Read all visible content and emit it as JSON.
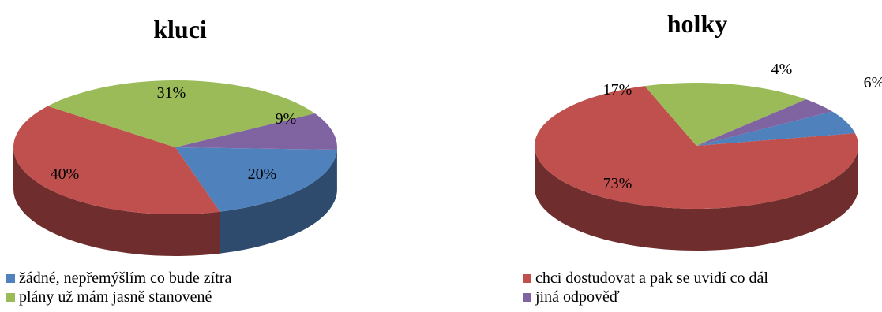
{
  "legend_left": [
    {
      "label": "žádné, nepřemýšlím co bude zítra",
      "color": "#4F81BD"
    },
    {
      "label": "plány už mám jasně stanovené",
      "color": "#9BBB59"
    }
  ],
  "legend_right": [
    {
      "label": "chci dostudovat a pak se uvidí co dál",
      "color": "#C0504D"
    },
    {
      "label": "jiná odpověď",
      "color": "#8064A2"
    }
  ],
  "chart_data": [
    {
      "type": "pie",
      "title": "kluci",
      "style": "3d",
      "slices": [
        {
          "value": 20,
          "label": "20%",
          "color": "#4F81BD"
        },
        {
          "value": 40,
          "label": "40%",
          "color": "#C0504D"
        },
        {
          "value": 31,
          "label": "31%",
          "color": "#9BBB59"
        },
        {
          "value": 9,
          "label": "9%",
          "color": "#8064A2"
        }
      ]
    },
    {
      "type": "pie",
      "title": "holky",
      "style": "3d",
      "slices": [
        {
          "value": 6,
          "label": "6%",
          "color": "#4F81BD"
        },
        {
          "value": 73,
          "label": "73%",
          "color": "#C0504D"
        },
        {
          "value": 17,
          "label": "17%",
          "color": "#9BBB59"
        },
        {
          "value": 4,
          "label": "4%",
          "color": "#8064A2"
        }
      ]
    }
  ]
}
